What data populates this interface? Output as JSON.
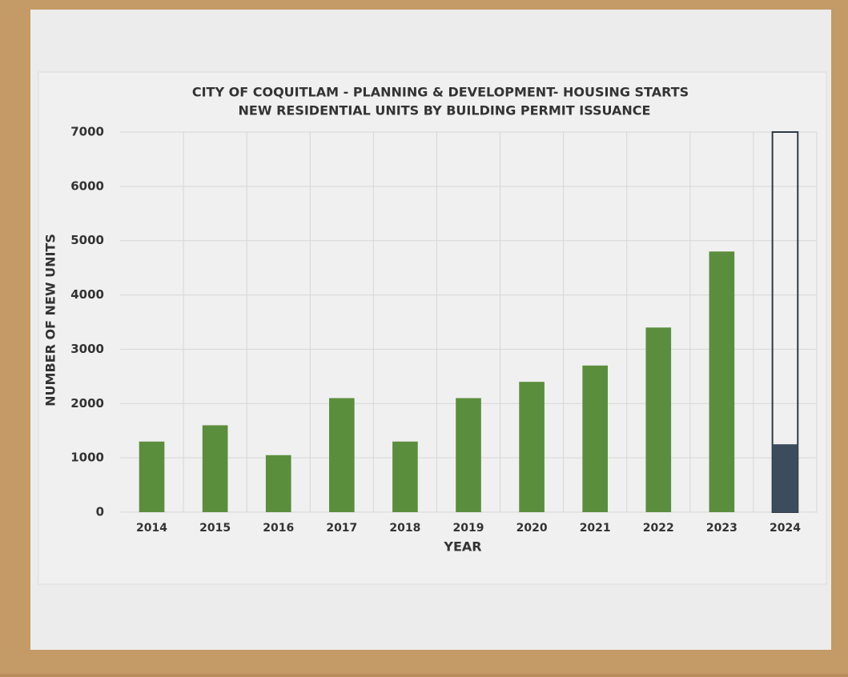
{
  "chart_data": {
    "type": "bar",
    "title": "CITY OF COQUITLAM - PLANNING & DEVELOPMENT- HOUSING STARTS",
    "subtitle": "NEW RESIDENTIAL UNITS BY BUILDING PERMIT ISSUANCE",
    "y_label": "NUMBER OF NEW UNITS",
    "x_label": "YEAR",
    "categories": [
      "2014",
      "2015",
      "2016",
      "2017",
      "2018",
      "2019",
      "2020",
      "2021",
      "2022",
      "2023",
      "2024"
    ],
    "values": [
      1300,
      1600,
      1050,
      2100,
      1300,
      2100,
      2400,
      2700,
      3400,
      4800,
      1250
    ],
    "colors": [
      "#5b8e3c",
      "#5b8e3c",
      "#5b8e3c",
      "#5b8e3c",
      "#5b8e3c",
      "#5b8e3c",
      "#5b8e3c",
      "#5b8e3c",
      "#5b8e3c",
      "#5b8e3c",
      "#3b4c5c"
    ],
    "target_values": [
      null,
      null,
      null,
      null,
      null,
      null,
      null,
      null,
      null,
      null,
      7000
    ],
    "target_color": "#2d3a44",
    "ylim": [
      0,
      7000
    ],
    "yticks": [
      0,
      1000,
      2000,
      3000,
      4000,
      5000,
      6000,
      7000
    ],
    "grid": true
  }
}
